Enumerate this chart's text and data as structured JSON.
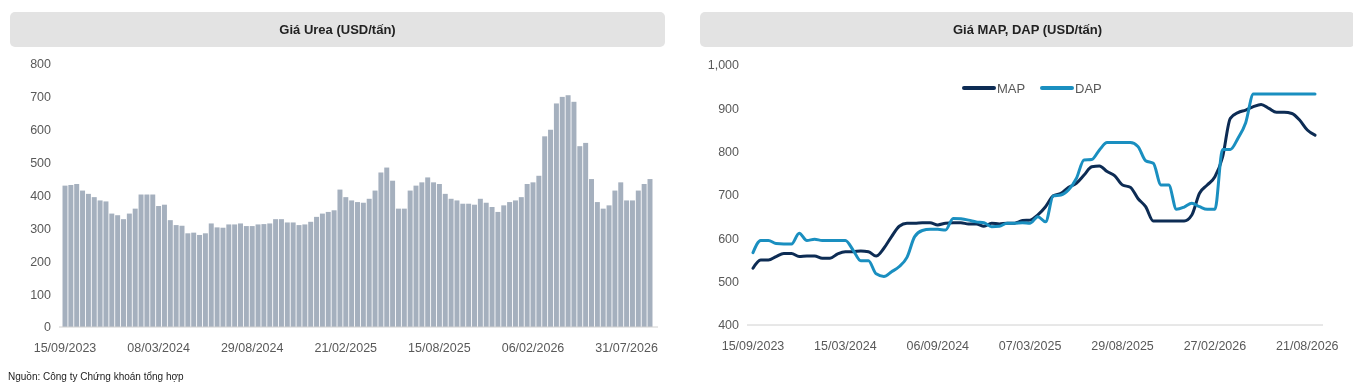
{
  "chart_data": [
    {
      "type": "bar",
      "title": "Giá Urea (USD/tấn)",
      "categories": [
        "15/09/2023",
        null,
        null,
        null,
        null,
        null,
        null,
        null,
        null,
        null,
        null,
        null,
        null,
        null,
        null,
        null,
        "08/03/2024",
        null,
        null,
        null,
        null,
        null,
        null,
        null,
        null,
        null,
        null,
        null,
        null,
        null,
        null,
        null,
        "29/08/2024",
        null,
        null,
        null,
        null,
        null,
        null,
        null,
        null,
        null,
        null,
        null,
        null,
        null,
        null,
        null,
        "21/02/2025",
        null,
        null,
        null,
        null,
        null,
        null,
        null,
        null,
        null,
        null,
        null,
        null,
        null,
        null,
        null,
        "15/08/2025",
        null,
        null,
        null,
        null,
        null,
        null,
        null,
        null,
        null,
        null,
        null,
        null,
        null,
        null,
        null,
        "06/02/2026",
        null,
        null,
        null,
        null,
        null,
        null,
        null,
        null,
        null,
        null,
        null,
        null,
        null,
        null,
        null,
        "31/07/2026",
        null,
        null,
        null,
        null
      ],
      "values": [
        430,
        432,
        435,
        415,
        405,
        395,
        385,
        382,
        345,
        340,
        328,
        345,
        360,
        403,
        403,
        403,
        368,
        372,
        325,
        310,
        308,
        285,
        287,
        280,
        285,
        315,
        303,
        302,
        312,
        312,
        315,
        307,
        307,
        312,
        313,
        315,
        328,
        328,
        318,
        318,
        310,
        312,
        320,
        335,
        345,
        350,
        355,
        418,
        395,
        385,
        380,
        378,
        390,
        415,
        470,
        485,
        445,
        360,
        360,
        415,
        430,
        440,
        455,
        440,
        435,
        405,
        390,
        385,
        375,
        375,
        372,
        390,
        378,
        365,
        350,
        370,
        380,
        385,
        395,
        435,
        440,
        460,
        580,
        600,
        680,
        700,
        705,
        685,
        550,
        560,
        450,
        380,
        360,
        370,
        415,
        440,
        385,
        385,
        415,
        435,
        450
      ],
      "color": "#a5b0be",
      "ylim": [
        0,
        800
      ],
      "yticks": [
        0,
        100,
        200,
        300,
        400,
        500,
        600,
        700,
        800
      ],
      "grid": false,
      "annotations": [
        "Nguồn: Công ty Chứng khoán tổng hợp"
      ]
    },
    {
      "type": "line",
      "title": "Giá MAP, DAP (USD/tấn)",
      "categories": [
        "15/09/2023",
        null,
        null,
        null,
        null,
        null,
        null,
        null,
        null,
        null,
        null,
        null,
        "15/03/2024",
        null,
        null,
        null,
        null,
        null,
        null,
        null,
        null,
        null,
        null,
        null,
        "06/09/2024",
        null,
        null,
        null,
        null,
        null,
        null,
        null,
        null,
        null,
        null,
        null,
        "07/03/2025",
        null,
        null,
        null,
        null,
        null,
        null,
        null,
        null,
        null,
        null,
        null,
        "29/08/2025",
        null,
        null,
        null,
        null,
        null,
        null,
        null,
        null,
        null,
        null,
        null,
        "27/02/2026",
        null,
        null,
        null,
        null,
        null,
        null,
        null,
        null,
        null,
        null,
        null,
        "21/08/2026",
        null
      ],
      "series": [
        {
          "name": "MAP",
          "color": "#0d2c54",
          "values": [
            531,
            550,
            550,
            558,
            565,
            565,
            558,
            559,
            559,
            554,
            554,
            564,
            569,
            569,
            571,
            569,
            559,
            577,
            604,
            628,
            635,
            635,
            636,
            636,
            631,
            635,
            636,
            636,
            633,
            633,
            628,
            635,
            633,
            635,
            635,
            641,
            642,
            654,
            673,
            698,
            704,
            718,
            727,
            746,
            765,
            767,
            754,
            744,
            723,
            718,
            692,
            673,
            640,
            640,
            640,
            640,
            640,
            654,
            704,
            723,
            742,
            788,
            877,
            890,
            896,
            904,
            909,
            900,
            891,
            891,
            888,
            873,
            850,
            838
          ]
        },
        {
          "name": "DAP",
          "color": "#1a8fc0",
          "values": [
            567,
            595,
            595,
            588,
            587,
            587,
            612,
            595,
            598,
            595,
            595,
            595,
            595,
            573,
            548,
            548,
            518,
            512,
            523,
            535,
            556,
            604,
            618,
            621,
            621,
            619,
            646,
            645,
            642,
            638,
            636,
            627,
            628,
            635,
            635,
            636,
            635,
            650,
            638,
            698,
            700,
            712,
            738,
            781,
            782,
            804,
            821,
            821,
            821,
            821,
            812,
            779,
            773,
            723,
            723,
            667,
            672,
            681,
            673,
            667,
            667,
            805,
            805,
            831,
            867,
            933,
            933,
            933,
            933,
            933,
            933,
            933,
            933,
            933
          ]
        }
      ],
      "ylim": [
        400,
        1000
      ],
      "yticks": [
        400,
        500,
        600,
        700,
        800,
        900,
        {
          "value": 1000,
          "label": "1,000"
        }
      ],
      "grid": false,
      "legend": "top",
      "line_style": "solid"
    }
  ]
}
